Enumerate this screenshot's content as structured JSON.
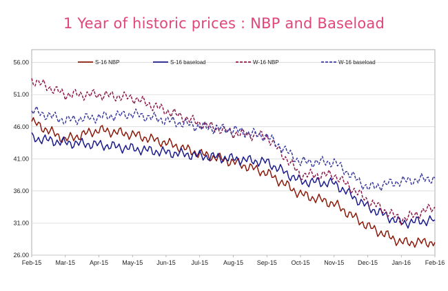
{
  "chart_data": {
    "type": "line",
    "title": "1 Year of historic prices : NBP and Baseload",
    "x": [
      "Feb-15",
      "Mar-15",
      "Apr-15",
      "May-15",
      "Jun-15",
      "Jul-15",
      "Aug-15",
      "Sep-15",
      "Oct-15",
      "Nov-15",
      "Dec-15",
      "Jan-16",
      "Feb-16"
    ],
    "xlabel": "",
    "ylabel": "",
    "ylim": [
      26,
      58
    ],
    "yticks": [
      "26.00",
      "31.00",
      "36.00",
      "41.00",
      "46.00",
      "51.00",
      "56.00"
    ],
    "grid": "horizontal",
    "legend": "top",
    "series": [
      {
        "name": "S-16 NBP",
        "color": "#8b1a0a",
        "dash": "solid",
        "values": [
          46.8,
          44.0,
          45.5,
          44.8,
          43.5,
          41.8,
          40.5,
          38.8,
          35.5,
          34.0,
          30.5,
          28.0,
          28.0
        ]
      },
      {
        "name": "S-16 baseload",
        "color": "#1a1a8c",
        "dash": "solid",
        "values": [
          44.3,
          43.5,
          43.2,
          42.6,
          42.0,
          41.5,
          41.0,
          40.5,
          37.5,
          37.2,
          33.5,
          31.0,
          31.5
        ]
      },
      {
        "name": "W-16 NBP",
        "color": "#8b1a4a",
        "dash": "dashed",
        "values": [
          53.3,
          51.0,
          51.0,
          50.5,
          48.5,
          46.5,
          45.0,
          44.5,
          38.5,
          38.5,
          34.5,
          31.5,
          33.5
        ]
      },
      {
        "name": "W-16 baseload",
        "color": "#3a3aa0",
        "dash": "dashed",
        "values": [
          48.5,
          47.0,
          47.5,
          48.0,
          47.0,
          46.0,
          45.5,
          44.5,
          40.5,
          40.5,
          36.5,
          37.5,
          38.0
        ]
      }
    ]
  }
}
